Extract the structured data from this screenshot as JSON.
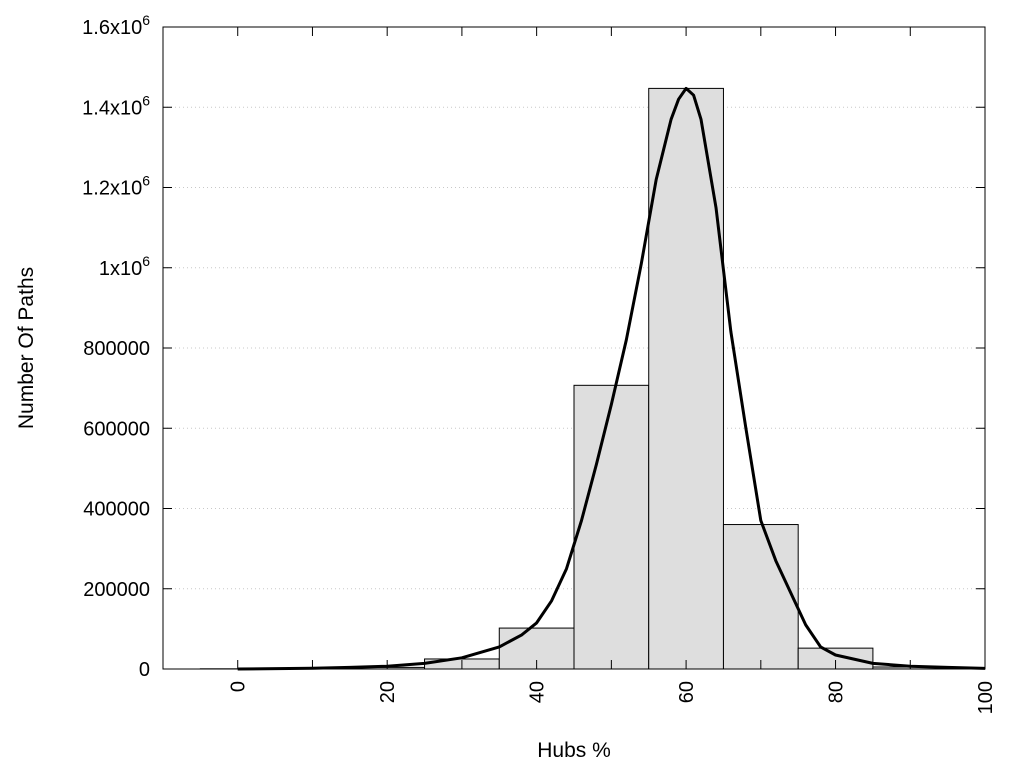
{
  "chart_data": {
    "type": "bar",
    "xlabel": "Hubs %",
    "ylabel": "Number Of Paths",
    "xlim": [
      -10,
      100
    ],
    "ylim": [
      0,
      1600000
    ],
    "bin_width": 10,
    "x_ticks": [
      {
        "value": 0,
        "label": "0"
      },
      {
        "value": 20,
        "label": "20"
      },
      {
        "value": 40,
        "label": "40"
      },
      {
        "value": 60,
        "label": "60"
      },
      {
        "value": 80,
        "label": "80"
      },
      {
        "value": 100,
        "label": "100"
      }
    ],
    "x_minor_ticks": [
      10,
      30,
      50,
      70,
      90
    ],
    "y_ticks": [
      {
        "value": 0,
        "label": "0"
      },
      {
        "value": 200000,
        "label": "200000"
      },
      {
        "value": 400000,
        "label": "400000"
      },
      {
        "value": 600000,
        "label": "600000"
      },
      {
        "value": 800000,
        "label": "800000"
      },
      {
        "value": 1000000,
        "base": "1x10",
        "exp": "6"
      },
      {
        "value": 1200000,
        "base": "1.2x10",
        "exp": "6"
      },
      {
        "value": 1400000,
        "base": "1.4x10",
        "exp": "6"
      },
      {
        "value": 1600000,
        "base": "1.6x10",
        "exp": "6"
      }
    ],
    "grid": "horizontal dotted",
    "bars": {
      "centers": [
        0,
        10,
        20,
        30,
        40,
        50,
        60,
        70,
        80,
        90
      ],
      "values": [
        500,
        1000,
        4000,
        25000,
        102000,
        707000,
        1447000,
        360000,
        52000,
        5000
      ]
    },
    "curve": {
      "x": [
        0,
        10,
        15,
        20,
        25,
        30,
        35,
        38,
        40,
        42,
        44,
        46,
        48,
        50,
        52,
        54,
        56,
        58,
        59,
        60,
        61,
        62,
        64,
        66,
        68,
        70,
        72,
        74,
        76,
        78,
        80,
        85,
        90,
        95,
        100
      ],
      "y": [
        0,
        2000,
        4000,
        7000,
        14000,
        28000,
        55000,
        85000,
        115000,
        170000,
        250000,
        370000,
        510000,
        660000,
        820000,
        1010000,
        1220000,
        1370000,
        1420000,
        1447000,
        1430000,
        1370000,
        1150000,
        840000,
        600000,
        370000,
        270000,
        190000,
        110000,
        55000,
        35000,
        14000,
        7000,
        4000,
        1500
      ]
    }
  }
}
